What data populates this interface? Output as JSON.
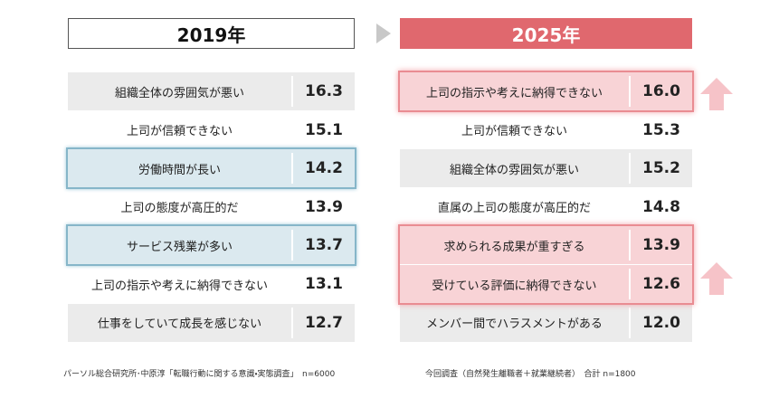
{
  "left": {
    "title": "2019年",
    "rows": [
      {
        "label": "組織全体の雰囲気が悪い",
        "value": 16.3,
        "highlight": false
      },
      {
        "label": "上司が信頼できない",
        "value": 15.1,
        "highlight": false
      },
      {
        "label": "労働時間が長い",
        "value": 14.2,
        "highlight": true
      },
      {
        "label": "上司の態度が高圧的だ",
        "value": 13.9,
        "highlight": false
      },
      {
        "label": "サービス残業が多い",
        "value": 13.7,
        "highlight": true
      },
      {
        "label": "上司の指示や考えに納得できない",
        "value": 13.1,
        "highlight": false
      },
      {
        "label": "仕事をしていて成長を感じない",
        "value": 12.7,
        "highlight": false
      }
    ],
    "source": "パーソル総合研究所･中原淳「転職行動に関する意識・実態調査」　n=6000"
  },
  "right": {
    "title": "2025年",
    "rows": [
      {
        "label": "上司の指示や考えに納得できない",
        "value": {
          "value": 16,
          "label": "16.0"
        },
        "highlight": true
      },
      {
        "label": "上司が信頼できない",
        "value": 15.3,
        "highlight": false
      },
      {
        "label": "組織全体の雰囲気が悪い",
        "value": 15.2,
        "highlight": false
      },
      {
        "label": "直属の上司の態度が高圧的だ",
        "value": 14.8,
        "highlight": false
      },
      {
        "label": "求められる成果が重すぎる",
        "value": 13.9,
        "highlight": true
      },
      {
        "label": "受けている評価に納得できない",
        "value": 12.6,
        "highlight": true
      },
      {
        "label": "メンバー間でハラスメントがある",
        "value": {
          "value": 12,
          "label": "12.0"
        },
        "highlight": false
      }
    ],
    "source": "今回調査（自然発生離職者＋就業継続者）　合計 n=1800"
  }
}
